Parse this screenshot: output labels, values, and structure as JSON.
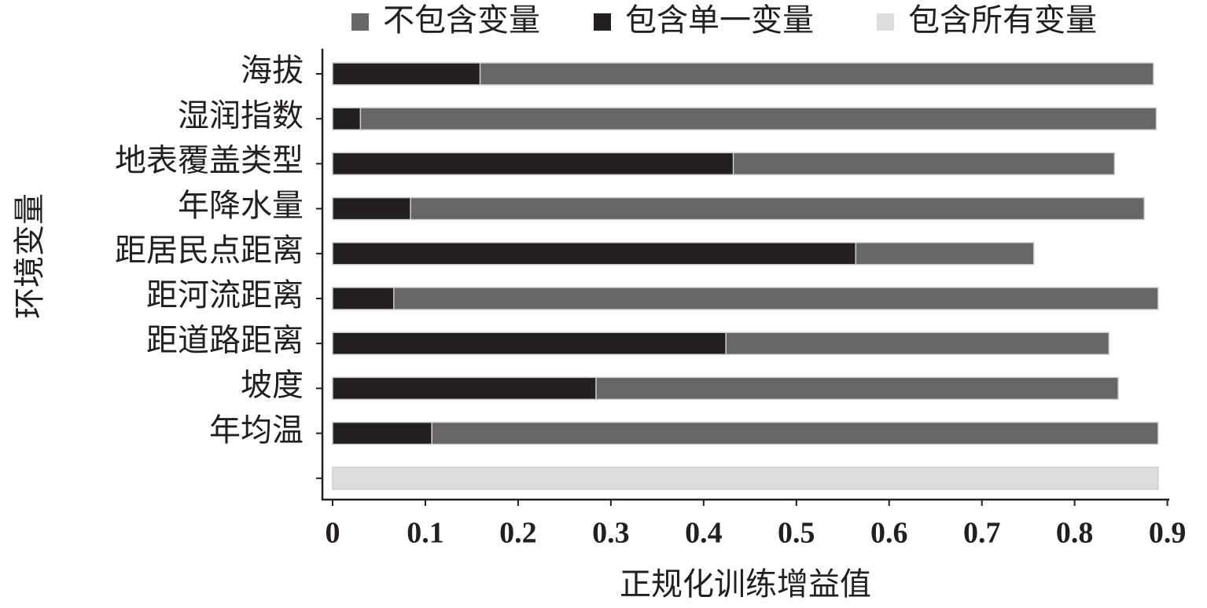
{
  "chart_data": {
    "type": "bar",
    "orientation": "horizontal",
    "overlap": true,
    "xlabel": "正规化训练增益值",
    "ylabel": "环境变量",
    "categories": [
      "海拔",
      "湿润指数",
      "地表覆盖类型",
      "年降水量",
      "距居民点距离",
      "距河流距离",
      "距道路距离",
      "坡度",
      "年均温",
      null
    ],
    "series": [
      {
        "name": "不包含变量",
        "color": "#686667",
        "values": [
          0.885,
          0.888,
          0.843,
          0.875,
          0.756,
          0.89,
          0.837,
          0.847,
          0.89,
          null
        ]
      },
      {
        "name": "包含单一变量",
        "color": "#231f20",
        "values": [
          0.159,
          0.03,
          0.432,
          0.084,
          0.564,
          0.066,
          0.424,
          0.284,
          0.107,
          null
        ]
      },
      {
        "name": "包含所有变量",
        "color": "#dddddd",
        "values": [
          null,
          null,
          null,
          null,
          null,
          null,
          null,
          null,
          null,
          0.89
        ]
      }
    ],
    "xlim": [
      -0.011,
      0.902
    ],
    "xticks": [
      0,
      0.1,
      0.2,
      0.3,
      0.4,
      0.5,
      0.6,
      0.7,
      0.8,
      0.9
    ],
    "legend": "top"
  }
}
